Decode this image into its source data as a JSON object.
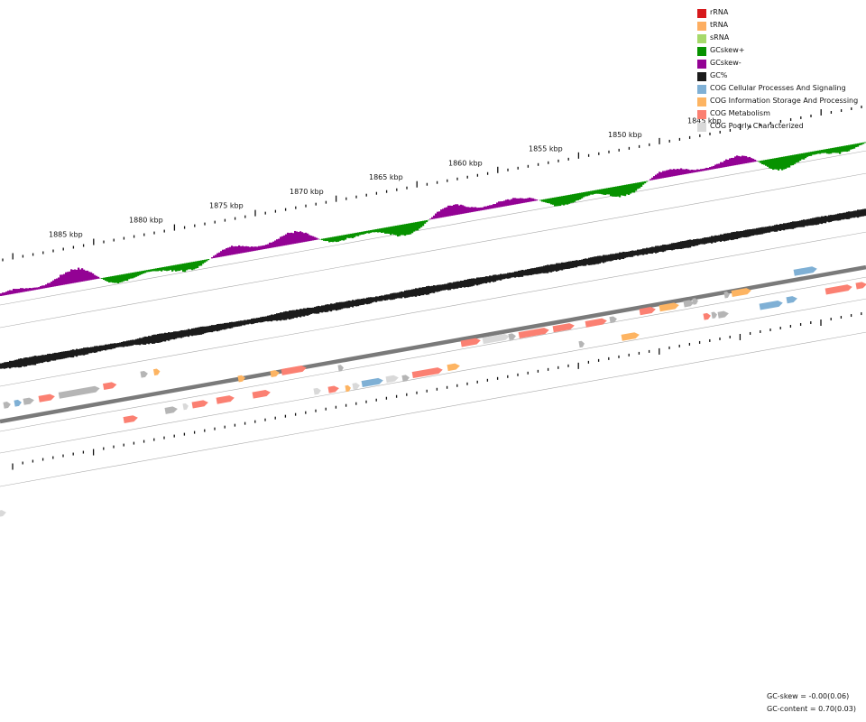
{
  "legend": [
    {
      "label": "rRNA",
      "color": "#d7191c"
    },
    {
      "label": "tRNA",
      "color": "#fdae61"
    },
    {
      "label": "sRNA",
      "color": "#a6d96a"
    },
    {
      "label": "GCskew+",
      "color": "#079200"
    },
    {
      "label": "GCskew-",
      "color": "#930294"
    },
    {
      "label": "GC%",
      "color": "#1b1b1b"
    },
    {
      "label": "COG Cellular Processes And Signaling",
      "color": "#7fb0d5"
    },
    {
      "label": "COG Information Storage And Processing",
      "color": "#fdb462"
    },
    {
      "label": "COG Metabolism",
      "color": "#fb8072"
    },
    {
      "label": "COG Poorly Characterized",
      "color": "#d9d9d9"
    }
  ],
  "scale_labels": [
    "1885 kbp",
    "1880 kbp",
    "1875 kbp",
    "1870 kbp",
    "1865 kbp",
    "1860 kbp",
    "1855 kbp",
    "1850 kbp",
    "1845 kbp"
  ],
  "stats": {
    "gc_skew": "GC-skew = -0.00(0.06)",
    "gc_content": "GC-content = 0.70(0.03)"
  },
  "colors": {
    "gene_gray": "#b5b5b5",
    "backbone": "#7a7a7a",
    "ring_line": "#aaaaaa"
  }
}
